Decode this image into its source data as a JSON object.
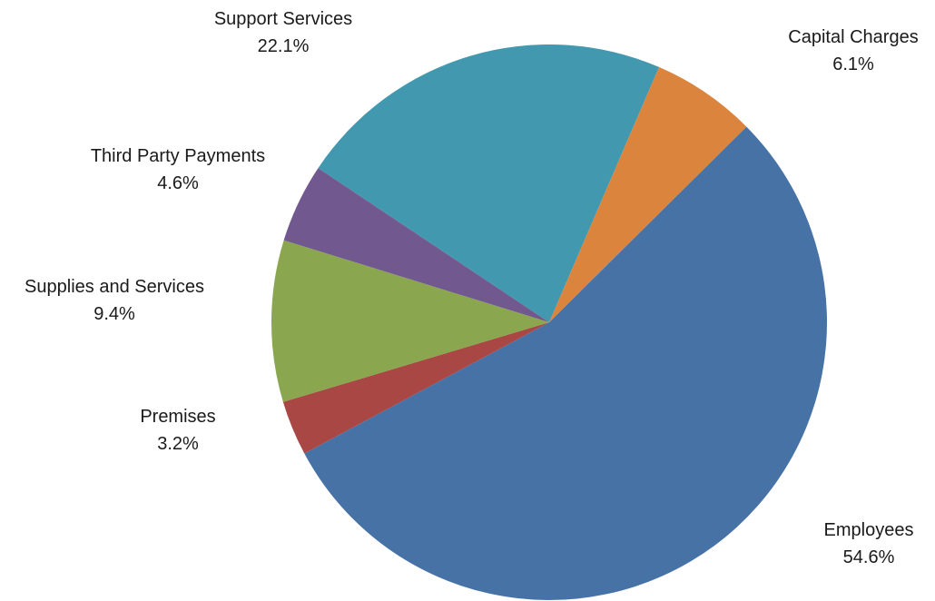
{
  "chart_data": {
    "type": "pie",
    "title": "",
    "legend": "none",
    "start_angle_deg": 0,
    "direction": "clockwise",
    "slices": [
      {
        "label": "Employees",
        "value": 54.6,
        "value_label": "54.6%",
        "color": "#4672A6"
      },
      {
        "label": "Premises",
        "value": 3.2,
        "value_label": "3.2%",
        "color": "#A84743"
      },
      {
        "label": "Supplies and Services",
        "value": 9.4,
        "value_label": "9.4%",
        "color": "#8AA64F"
      },
      {
        "label": "Third Party Payments",
        "value": 4.6,
        "value_label": "4.6%",
        "color": "#71598F"
      },
      {
        "label": "Support Services",
        "value": 22.1,
        "value_label": "22.1%",
        "color": "#4198AF"
      },
      {
        "label": "Capital Charges",
        "value": 6.1,
        "value_label": "6.1%",
        "color": "#DB843D"
      }
    ]
  }
}
